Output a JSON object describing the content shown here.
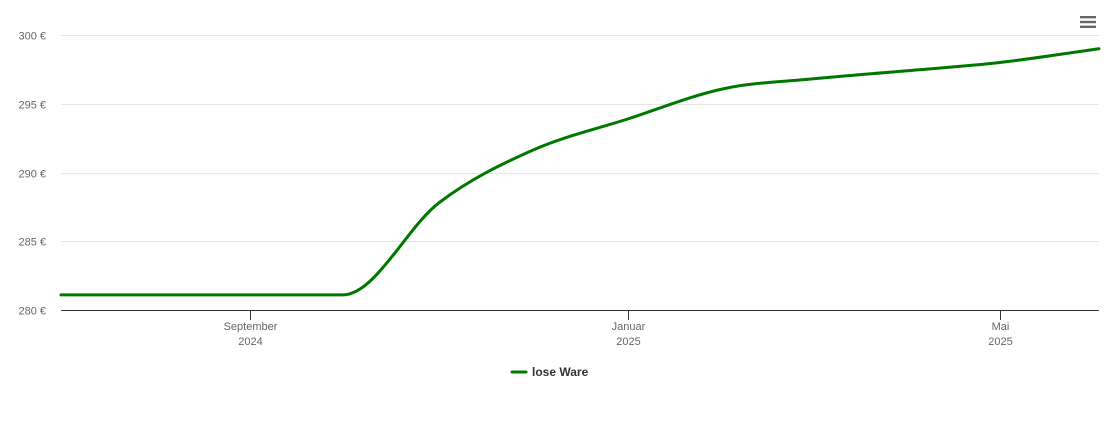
{
  "chart_data": {
    "type": "line",
    "title": "",
    "xlabel": "",
    "ylabel": "",
    "ylim": [
      280,
      300
    ],
    "y_ticks": [
      {
        "value": 280,
        "label": "280 €"
      },
      {
        "value": 285,
        "label": "285 €"
      },
      {
        "value": 290,
        "label": "290 €"
      },
      {
        "value": 295,
        "label": "295 €"
      },
      {
        "value": 300,
        "label": "300 €"
      }
    ],
    "xlim": [
      "2024-07-02",
      "2025-06-02"
    ],
    "x_ticks": [
      {
        "date": "2024-09-01",
        "month": "September",
        "year": "2024"
      },
      {
        "date": "2025-01-01",
        "month": "Januar",
        "year": "2025"
      },
      {
        "date": "2025-05-01",
        "month": "Mai",
        "year": "2025"
      }
    ],
    "grid": true,
    "legend_position": "bottom-center",
    "series": [
      {
        "name": "lose Ware",
        "color": "#007800",
        "points": [
          {
            "x": "2024-07-02",
            "y": 281.1
          },
          {
            "x": "2024-10-01",
            "y": 281.1
          },
          {
            "x": "2024-11-01",
            "y": 287.8
          },
          {
            "x": "2024-12-01",
            "y": 291.6
          },
          {
            "x": "2025-01-01",
            "y": 293.9
          },
          {
            "x": "2025-02-01",
            "y": 296.1
          },
          {
            "x": "2025-03-01",
            "y": 296.8
          },
          {
            "x": "2025-04-01",
            "y": 297.4
          },
          {
            "x": "2025-05-01",
            "y": 298.0
          },
          {
            "x": "2025-06-02",
            "y": 299.0
          }
        ]
      }
    ]
  },
  "menu": {
    "icon": "hamburger-menu-icon"
  }
}
